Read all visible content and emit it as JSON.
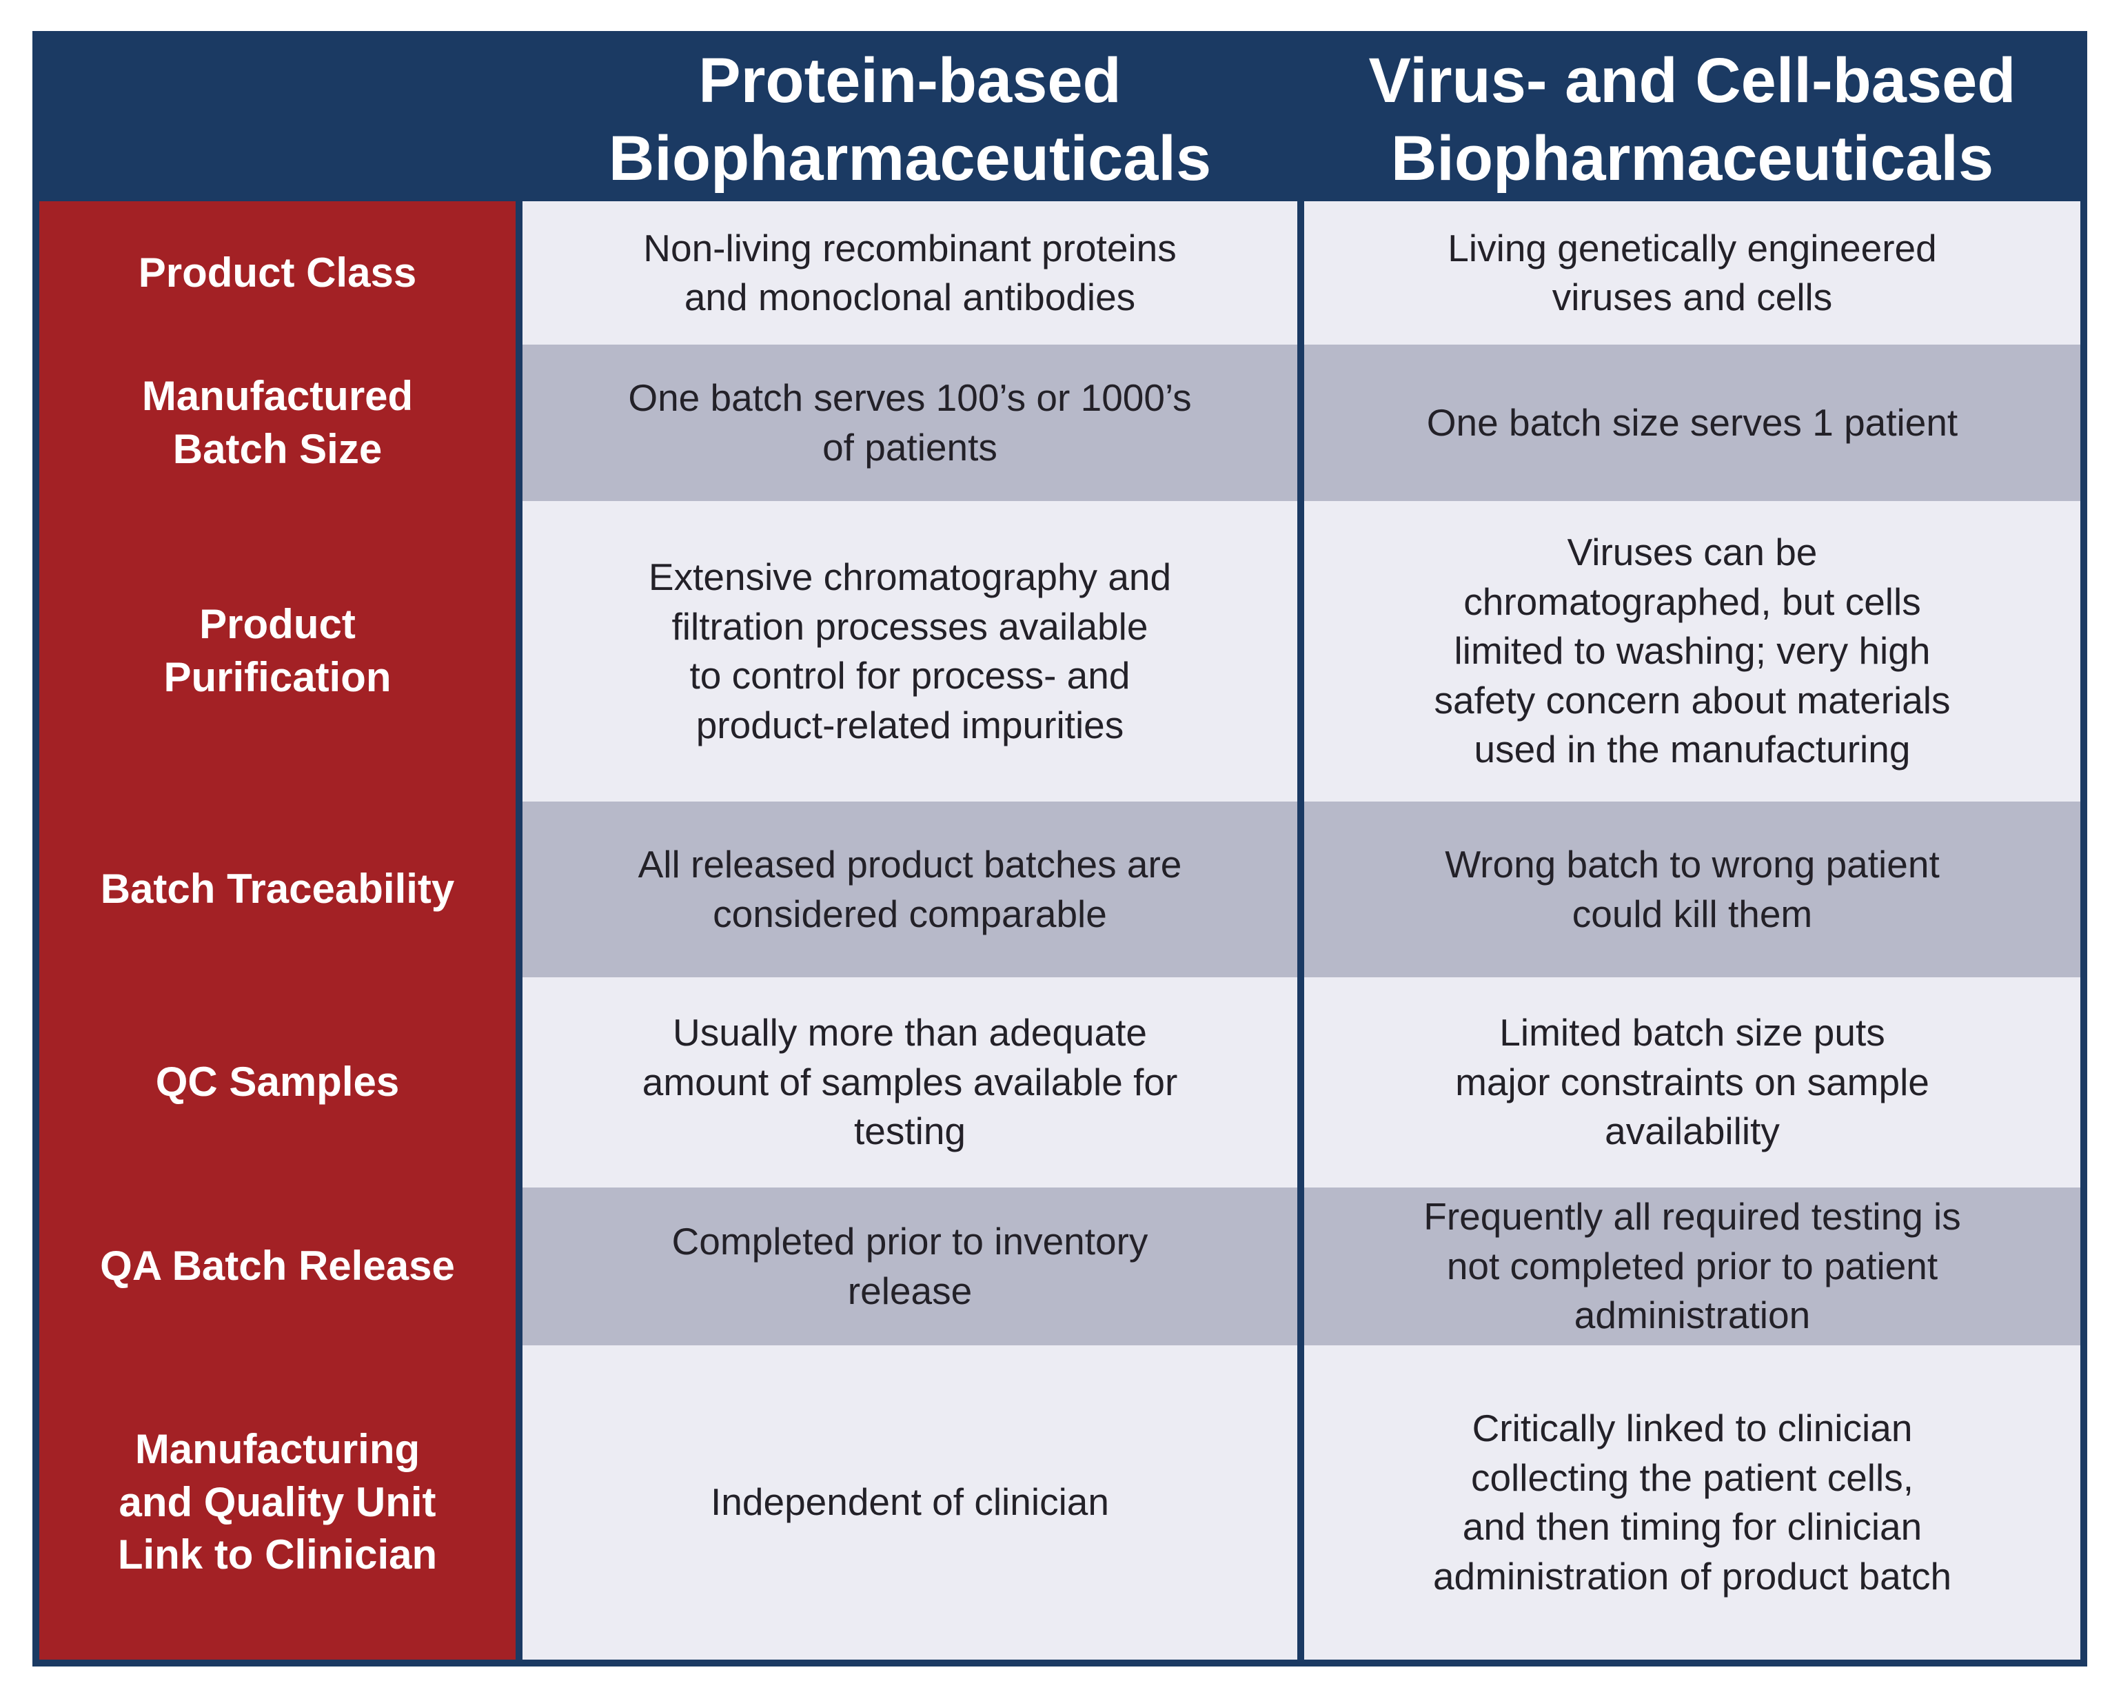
{
  "colors": {
    "navy_header": "#1b3a63",
    "red_label_column": "#a32125",
    "band_light": "#ececf3",
    "band_dark": "#b7b9c9",
    "body_text": "#232128",
    "header_text": "#ffffff",
    "page_background": "#ffffff"
  },
  "header": {
    "protein_column": "Protein-based\nBiopharmaceuticals",
    "virus_column": "Virus- and Cell-based\nBiopharmaceuticals"
  },
  "rows": [
    {
      "label": "Product Class",
      "protein": "Non-living recombinant proteins\nand monoclonal antibodies",
      "virus": "Living genetically engineered\nviruses and cells"
    },
    {
      "label": "Manufactured\nBatch Size",
      "protein": "One batch serves 100’s or 1000’s\nof patients",
      "virus": "One batch size serves 1 patient"
    },
    {
      "label": "Product\nPurification",
      "protein": "Extensive chromatography and\nfiltration processes available\nto control for process- and\nproduct-related impurities",
      "virus": "Viruses can be\nchromatographed, but cells\nlimited to washing; very high\nsafety concern about materials\nused in the manufacturing"
    },
    {
      "label": "Batch Traceability",
      "protein": "All released product batches are\nconsidered comparable",
      "virus": "Wrong batch to wrong patient\ncould kill them"
    },
    {
      "label": "QC Samples",
      "protein": "Usually more than adequate\namount of samples available for\ntesting",
      "virus": "Limited batch size puts\nmajor constraints on sample\navailability"
    },
    {
      "label": "QA Batch Release",
      "protein": "Completed prior to inventory\nrelease",
      "virus": "Frequently all required testing is\nnot completed prior to patient\nadministration"
    },
    {
      "label": "Manufacturing\nand Quality Unit\nLink to Clinician",
      "protein": "Independent of clinician",
      "virus": "Critically linked to clinician\ncollecting the patient cells,\nand then timing for clinician\nadministration of product batch"
    }
  ]
}
